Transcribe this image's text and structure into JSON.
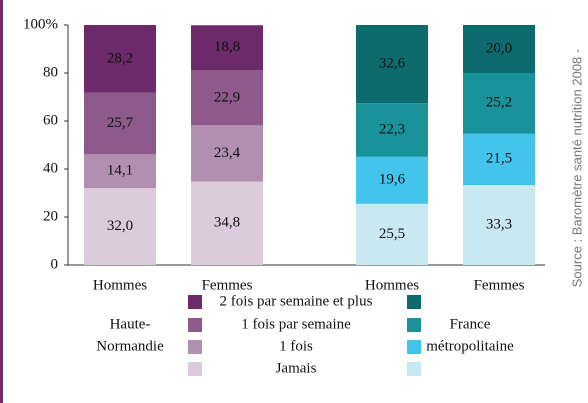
{
  "chart_data": {
    "type": "stacked-bar",
    "categories": [
      "Hommes",
      "Femmes",
      "Hommes",
      "Femmes"
    ],
    "groups": [
      {
        "name_lines": [
          "Haute-",
          "Normandie"
        ],
        "bars": [
          0,
          1
        ],
        "colors": [
          "#dccbdc",
          "#b08fb0",
          "#8d5a8b",
          "#6d2a6b"
        ]
      },
      {
        "name_lines": [
          "France",
          "métropolitaine"
        ],
        "bars": [
          2,
          3
        ],
        "colors": [
          "#c8e8f2",
          "#42c4ec",
          "#1a9299",
          "#0d6a6d"
        ]
      }
    ],
    "series": [
      {
        "name": "Jamais",
        "values": [
          32.0,
          34.8,
          25.5,
          33.3
        ],
        "value_labels": [
          "32,0",
          "34,8",
          "25,5",
          "33,3"
        ]
      },
      {
        "name": "1 fois",
        "values": [
          14.1,
          23.4,
          19.6,
          21.5
        ],
        "value_labels": [
          "14,1",
          "23,4",
          "19,6",
          "21,5"
        ]
      },
      {
        "name": "1 fois par semaine",
        "values": [
          25.7,
          22.9,
          22.3,
          25.2
        ],
        "value_labels": [
          "25,7",
          "22,9",
          "22,3",
          "25,2"
        ]
      },
      {
        "name": "2 fois par semaine et plus",
        "values": [
          28.2,
          18.8,
          32.6,
          20.0
        ],
        "value_labels": [
          "28,2",
          "18,8",
          "32,6",
          "20,0"
        ]
      }
    ],
    "ylim": [
      0,
      100
    ],
    "yticks": [
      0,
      20,
      40,
      60,
      80,
      {
        "value": 100,
        "label": "100%"
      }
    ],
    "source": "Source : Baromètre santé nutrition 2008 -"
  }
}
